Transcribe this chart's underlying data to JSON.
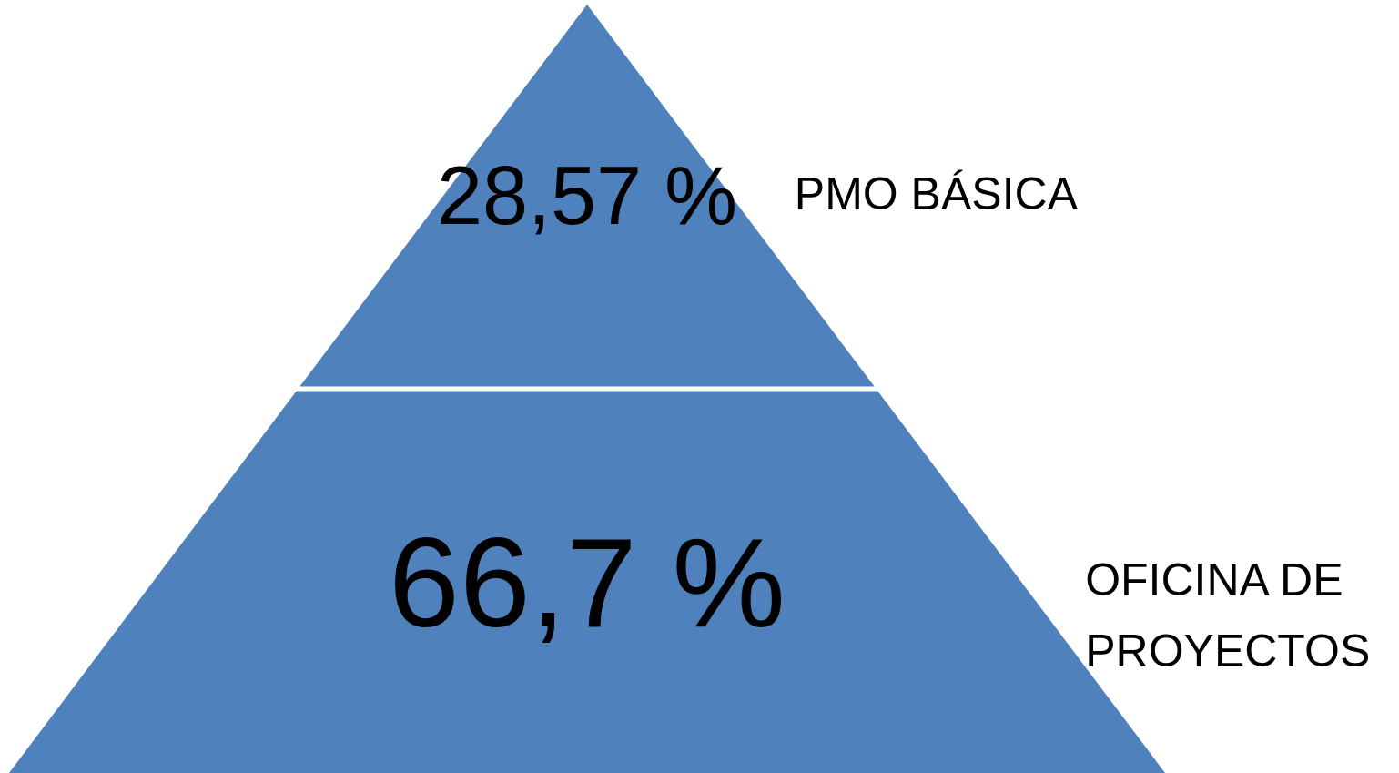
{
  "chart_data": {
    "type": "other",
    "categories": [
      "PMO BÁSICA",
      "OFICINA DE\nPROYECTOS"
    ],
    "values": [
      28.57,
      66.7
    ],
    "value_labels": [
      "28,57 %",
      "66,7 %"
    ],
    "color": "#4f81bd"
  }
}
